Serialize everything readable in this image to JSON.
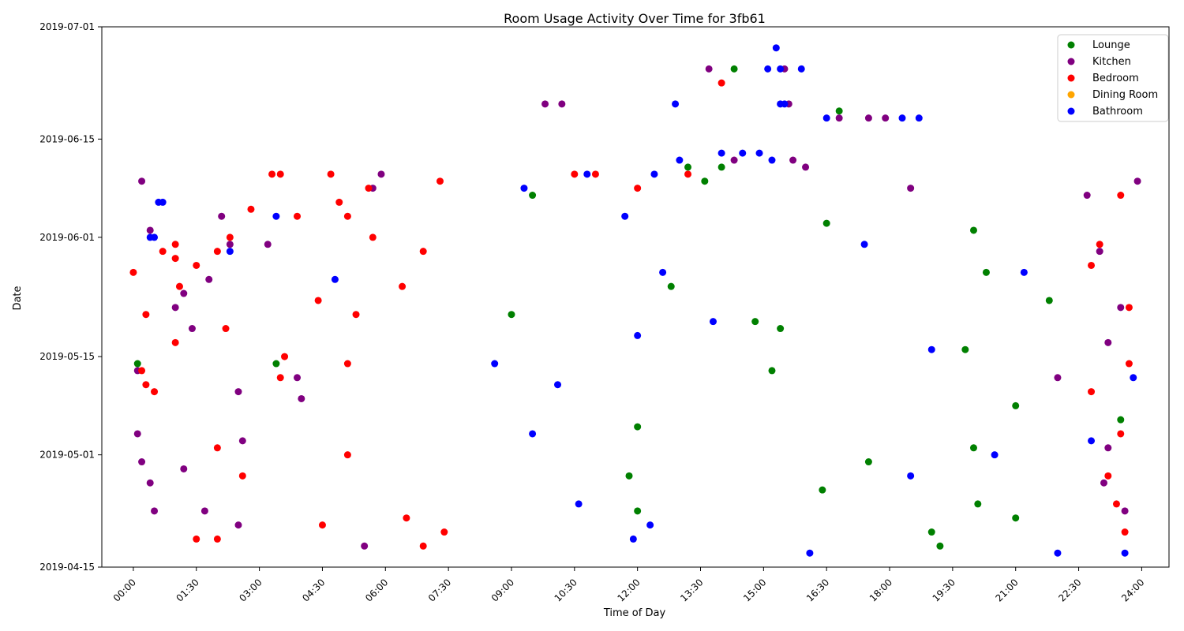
{
  "chart_data": {
    "type": "scatter",
    "title": "Room Usage Activity Over Time for 3fb61",
    "xlabel": "Time of Day",
    "ylabel": "Date",
    "xlim": [
      -0.75,
      24.65
    ],
    "ylim": [
      "2019-04-15",
      "2019-07-01"
    ],
    "x_ticks": [
      "00:00",
      "01:30",
      "03:00",
      "04:30",
      "06:00",
      "07:30",
      "09:00",
      "10:30",
      "12:00",
      "13:30",
      "15:00",
      "16:30",
      "18:00",
      "19:30",
      "21:00",
      "22:30",
      "24:00"
    ],
    "y_ticks": [
      "2019-04-15",
      "2019-05-01",
      "2019-05-15",
      "2019-06-01",
      "2019-06-15",
      "2019-07-01"
    ],
    "legend_position": "top-right",
    "grid": false,
    "series": [
      {
        "name": "Lounge",
        "color": "#008000",
        "points": [
          [
            "2019-05-14",
            0.1
          ],
          [
            "2019-05-14",
            3.4
          ],
          [
            "2019-06-25",
            14.3
          ],
          [
            "2019-06-11",
            13.2
          ],
          [
            "2019-06-11",
            14.0
          ],
          [
            "2019-06-09",
            13.6
          ],
          [
            "2019-05-25",
            12.8
          ],
          [
            "2019-05-20",
            14.8
          ],
          [
            "2019-05-19",
            15.4
          ],
          [
            "2019-05-13",
            15.2
          ],
          [
            "2019-05-05",
            12.0
          ],
          [
            "2019-04-28",
            11.8
          ],
          [
            "2019-04-26",
            16.4
          ],
          [
            "2019-04-23",
            12.0
          ],
          [
            "2019-04-20",
            19.0
          ],
          [
            "2019-04-18",
            19.2
          ],
          [
            "2019-06-07",
            9.5
          ],
          [
            "2019-06-03",
            16.5
          ],
          [
            "2019-05-21",
            9.0
          ],
          [
            "2019-05-08",
            21.0
          ],
          [
            "2019-04-30",
            17.5
          ],
          [
            "2019-05-02",
            20.0
          ],
          [
            "2019-06-19",
            16.8
          ],
          [
            "2019-05-27",
            20.3
          ],
          [
            "2019-05-23",
            21.8
          ],
          [
            "2019-05-06",
            23.5
          ],
          [
            "2019-04-24",
            20.1
          ],
          [
            "2019-06-02",
            20.0
          ],
          [
            "2019-05-16",
            19.8
          ],
          [
            "2019-04-22",
            21.0
          ]
        ]
      },
      {
        "name": "Kitchen",
        "color": "#800080",
        "points": [
          [
            "2019-06-09",
            0.2
          ],
          [
            "2019-06-02",
            0.4
          ],
          [
            "2019-05-13",
            0.1
          ],
          [
            "2019-05-04",
            0.1
          ],
          [
            "2019-04-30",
            0.2
          ],
          [
            "2019-04-27",
            0.4
          ],
          [
            "2019-04-23",
            0.5
          ],
          [
            "2019-05-24",
            1.2
          ],
          [
            "2019-05-22",
            1.0
          ],
          [
            "2019-05-19",
            1.4
          ],
          [
            "2019-04-29",
            1.2
          ],
          [
            "2019-05-26",
            1.8
          ],
          [
            "2019-06-04",
            2.1
          ],
          [
            "2019-05-31",
            2.3
          ],
          [
            "2019-05-10",
            2.5
          ],
          [
            "2019-05-03",
            2.6
          ],
          [
            "2019-04-23",
            1.7
          ],
          [
            "2019-05-12",
            3.9
          ],
          [
            "2019-05-31",
            3.2
          ],
          [
            "2019-06-10",
            5.9
          ],
          [
            "2019-06-08",
            5.7
          ],
          [
            "2019-04-18",
            5.5
          ],
          [
            "2019-05-09",
            4.0
          ],
          [
            "2019-04-21",
            2.5
          ],
          [
            "2019-06-25",
            13.7
          ],
          [
            "2019-06-20",
            9.8
          ],
          [
            "2019-06-20",
            10.2
          ],
          [
            "2019-06-25",
            15.5
          ],
          [
            "2019-06-20",
            15.6
          ],
          [
            "2019-06-18",
            16.8
          ],
          [
            "2019-06-18",
            17.5
          ],
          [
            "2019-06-18",
            17.9
          ],
          [
            "2019-06-12",
            14.3
          ],
          [
            "2019-06-12",
            15.7
          ],
          [
            "2019-06-11",
            16.0
          ],
          [
            "2019-06-08",
            18.5
          ],
          [
            "2019-06-07",
            22.7
          ],
          [
            "2019-06-09",
            23.9
          ],
          [
            "2019-05-30",
            23.0
          ],
          [
            "2019-05-22",
            23.5
          ],
          [
            "2019-05-17",
            23.2
          ],
          [
            "2019-05-12",
            22.0
          ],
          [
            "2019-05-02",
            23.2
          ],
          [
            "2019-04-27",
            23.1
          ],
          [
            "2019-04-23",
            23.6
          ]
        ]
      },
      {
        "name": "Bedroom",
        "color": "#ff0000",
        "points": [
          [
            "2019-05-27",
            0.0
          ],
          [
            "2019-05-13",
            0.2
          ],
          [
            "2019-05-11",
            0.3
          ],
          [
            "2019-05-21",
            0.3
          ],
          [
            "2019-05-10",
            0.5
          ],
          [
            "2019-05-30",
            0.7
          ],
          [
            "2019-05-29",
            1.0
          ],
          [
            "2019-05-31",
            1.0
          ],
          [
            "2019-05-25",
            1.1
          ],
          [
            "2019-05-17",
            1.0
          ],
          [
            "2019-05-28",
            1.5
          ],
          [
            "2019-05-30",
            2.0
          ],
          [
            "2019-06-01",
            2.3
          ],
          [
            "2019-04-19",
            1.5
          ],
          [
            "2019-04-19",
            2.0
          ],
          [
            "2019-05-02",
            2.0
          ],
          [
            "2019-04-28",
            2.6
          ],
          [
            "2019-06-05",
            2.8
          ],
          [
            "2019-06-10",
            3.3
          ],
          [
            "2019-06-10",
            3.5
          ],
          [
            "2019-06-04",
            3.9
          ],
          [
            "2019-05-15",
            3.6
          ],
          [
            "2019-05-12",
            3.5
          ],
          [
            "2019-05-19",
            2.2
          ],
          [
            "2019-05-23",
            4.4
          ],
          [
            "2019-06-10",
            4.7
          ],
          [
            "2019-06-06",
            4.9
          ],
          [
            "2019-06-04",
            5.1
          ],
          [
            "2019-05-14",
            5.1
          ],
          [
            "2019-05-01",
            5.1
          ],
          [
            "2019-04-21",
            4.5
          ],
          [
            "2019-05-21",
            5.3
          ],
          [
            "2019-06-08",
            5.6
          ],
          [
            "2019-06-01",
            5.7
          ],
          [
            "2019-04-22",
            6.5
          ],
          [
            "2019-04-18",
            6.9
          ],
          [
            "2019-05-25",
            6.4
          ],
          [
            "2019-05-30",
            6.9
          ],
          [
            "2019-06-09",
            7.3
          ],
          [
            "2019-04-20",
            7.4
          ],
          [
            "2019-06-23",
            14.0
          ],
          [
            "2019-06-10",
            10.5
          ],
          [
            "2019-06-10",
            11.0
          ],
          [
            "2019-06-08",
            12.0
          ],
          [
            "2019-06-10",
            13.2
          ],
          [
            "2019-05-28",
            22.8
          ],
          [
            "2019-05-31",
            23.0
          ],
          [
            "2019-05-22",
            23.7
          ],
          [
            "2019-05-10",
            22.8
          ],
          [
            "2019-05-04",
            23.5
          ],
          [
            "2019-04-28",
            23.2
          ],
          [
            "2019-04-24",
            23.4
          ],
          [
            "2019-04-20",
            23.6
          ],
          [
            "2019-06-07",
            23.5
          ],
          [
            "2019-05-14",
            23.7
          ]
        ]
      },
      {
        "name": "Dining Room",
        "color": "#ffa500",
        "points": []
      },
      {
        "name": "Bathroom",
        "color": "#0000ff",
        "points": [
          [
            "2019-06-06",
            0.6
          ],
          [
            "2019-06-06",
            0.7
          ],
          [
            "2019-06-01",
            0.4
          ],
          [
            "2019-06-01",
            0.5
          ],
          [
            "2019-05-30",
            2.3
          ],
          [
            "2019-05-26",
            4.8
          ],
          [
            "2019-06-04",
            3.4
          ],
          [
            "2019-06-28",
            15.3
          ],
          [
            "2019-06-25",
            15.1
          ],
          [
            "2019-06-25",
            15.4
          ],
          [
            "2019-06-25",
            15.9
          ],
          [
            "2019-06-20",
            12.9
          ],
          [
            "2019-06-20",
            15.4
          ],
          [
            "2019-06-20",
            15.5
          ],
          [
            "2019-06-18",
            16.5
          ],
          [
            "2019-06-18",
            18.3
          ],
          [
            "2019-06-18",
            18.7
          ],
          [
            "2019-06-13",
            14.0
          ],
          [
            "2019-06-13",
            14.5
          ],
          [
            "2019-06-13",
            14.9
          ],
          [
            "2019-06-12",
            13.0
          ],
          [
            "2019-06-12",
            15.2
          ],
          [
            "2019-06-10",
            10.8
          ],
          [
            "2019-06-10",
            12.4
          ],
          [
            "2019-06-08",
            9.3
          ],
          [
            "2019-06-04",
            11.7
          ],
          [
            "2019-05-31",
            17.4
          ],
          [
            "2019-05-27",
            12.6
          ],
          [
            "2019-05-20",
            13.8
          ],
          [
            "2019-05-18",
            12.0
          ],
          [
            "2019-05-14",
            8.6
          ],
          [
            "2019-05-11",
            10.1
          ],
          [
            "2019-05-04",
            9.5
          ],
          [
            "2019-05-01",
            20.5
          ],
          [
            "2019-04-28",
            18.5
          ],
          [
            "2019-04-24",
            10.6
          ],
          [
            "2019-04-21",
            12.3
          ],
          [
            "2019-04-19",
            11.9
          ],
          [
            "2019-04-17",
            16.1
          ],
          [
            "2019-05-12",
            23.8
          ],
          [
            "2019-05-03",
            22.8
          ],
          [
            "2019-04-17",
            23.6
          ],
          [
            "2019-04-17",
            22.0
          ],
          [
            "2019-05-27",
            21.2
          ],
          [
            "2019-05-16",
            19.0
          ]
        ]
      }
    ]
  }
}
